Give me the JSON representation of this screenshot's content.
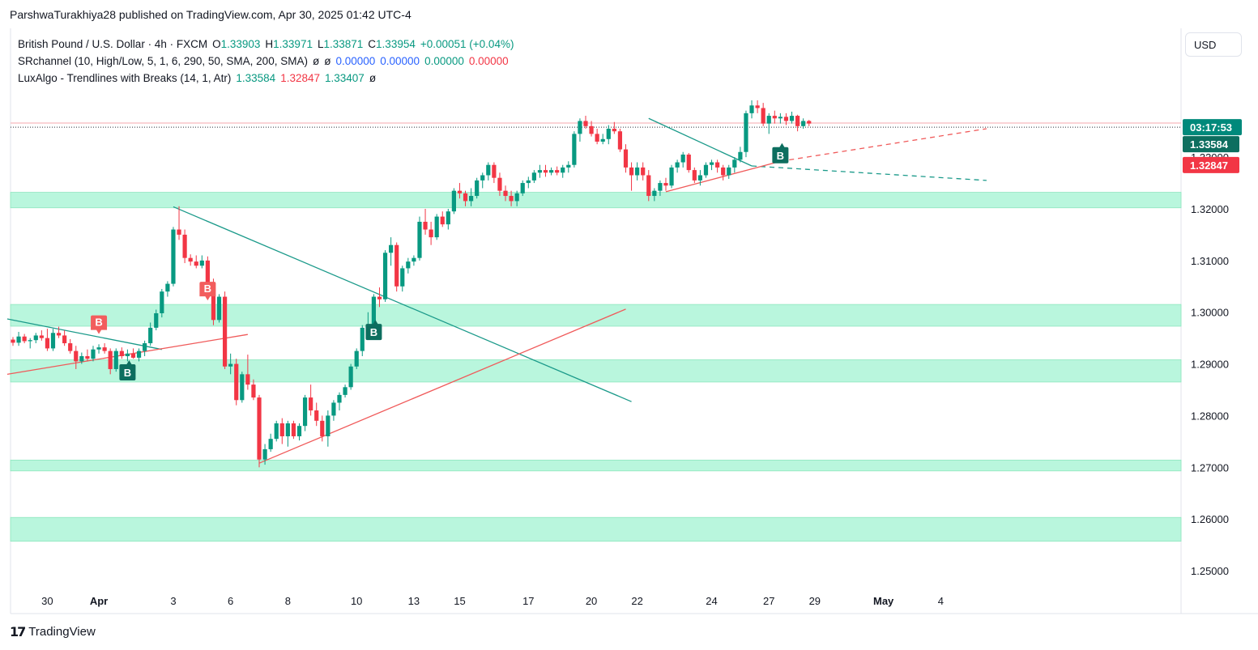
{
  "header": {
    "publisher": "ParshwaTurakhiya28 published on TradingView.com, Apr 30, 2025 01:42 UTC-4"
  },
  "legend": {
    "symbol": "British Pound / U.S. Dollar · 4h · FXCM",
    "o_label": "O",
    "o": "1.33903",
    "h_label": "H",
    "h": "1.33971",
    "l_label": "L",
    "l": "1.33871",
    "c_label": "C",
    "c": "1.33954",
    "change": "+0.00051 (+0.04%)",
    "ind1_name": "SRchannel (10, High/Low, 5, 1, 6, 290, 50, SMA, 200, SMA)",
    "ind1_phi1": "ø",
    "ind1_phi2": "ø",
    "ind1_v1": "0.00000",
    "ind1_v2": "0.00000",
    "ind1_v3": "0.00000",
    "ind1_v4": "0.00000",
    "ind2_name": "LuxAlgo - Trendlines with Breaks (14, 1, Atr)",
    "ind2_v1": "1.33584",
    "ind2_v2": "1.32847",
    "ind2_v3": "1.33407",
    "ind2_phi": "ø"
  },
  "currency_button": "USD",
  "price_tags": {
    "countdown": "03:17:53",
    "last_price": "1.33584",
    "red_price": "1.32847",
    "hidden_tick": "1.33000"
  },
  "footer": {
    "logo_text": "TradingView"
  },
  "colors": {
    "up": "#089981",
    "down": "#f23645",
    "zone": "#b9f6dd",
    "zone_edge": "#8ee6be",
    "tag_green": "#00897b",
    "tag_dark": "#0d6e5f",
    "tag_red": "#f23645",
    "trend_teal": "#1b9a8a",
    "trend_red": "#f05a5a"
  },
  "chart_data": {
    "type": "candlestick",
    "symbol": "GBPUSD",
    "timeframe": "4h",
    "y_ticks": [
      "1.32000",
      "1.31000",
      "1.30000",
      "1.29000",
      "1.28000",
      "1.27000",
      "1.26000",
      "1.25000"
    ],
    "ylim": [
      1.2455,
      1.3555
    ],
    "x_ticks": [
      {
        "label": "30",
        "bar": 6
      },
      {
        "label": "Apr",
        "bar": 15
      },
      {
        "label": "3",
        "bar": 28
      },
      {
        "label": "6",
        "bar": 38
      },
      {
        "label": "8",
        "bar": 48
      },
      {
        "label": "10",
        "bar": 60
      },
      {
        "label": "13",
        "bar": 70
      },
      {
        "label": "15",
        "bar": 78
      },
      {
        "label": "17",
        "bar": 90
      },
      {
        "label": "20",
        "bar": 101
      },
      {
        "label": "22",
        "bar": 109
      },
      {
        "label": "24",
        "bar": 122
      },
      {
        "label": "27",
        "bar": 132
      },
      {
        "label": "29",
        "bar": 140
      },
      {
        "label": "May",
        "bar": 152
      },
      {
        "label": "4",
        "bar": 162
      }
    ],
    "bold_x_ticks": [
      "Apr",
      "May"
    ],
    "sr_zones": [
      [
        1.3202,
        1.3232
      ],
      [
        1.2973,
        1.3015
      ],
      [
        1.2865,
        1.2908
      ],
      [
        1.2693,
        1.2714
      ],
      [
        1.2557,
        1.2603
      ]
    ],
    "resistance_line": 1.3366,
    "last_price_line": 1.3358,
    "candles": [
      [
        1.2947,
        1.2952,
        1.2935,
        1.2941
      ],
      [
        1.2941,
        1.2962,
        1.2935,
        1.2953
      ],
      [
        1.2953,
        1.2958,
        1.294,
        1.2944
      ],
      [
        1.2944,
        1.295,
        1.293,
        1.2946
      ],
      [
        1.2946,
        1.296,
        1.294,
        1.2955
      ],
      [
        1.2955,
        1.2965,
        1.2945,
        1.295
      ],
      [
        1.295,
        1.2968,
        1.2925,
        1.293
      ],
      [
        1.293,
        1.2968,
        1.2925,
        1.296
      ],
      [
        1.296,
        1.2972,
        1.295,
        1.2955
      ],
      [
        1.2955,
        1.2965,
        1.2935,
        1.294
      ],
      [
        1.294,
        1.2948,
        1.292,
        1.2925
      ],
      [
        1.2925,
        1.2935,
        1.289,
        1.2905
      ],
      [
        1.2905,
        1.2922,
        1.29,
        1.2915
      ],
      [
        1.2915,
        1.2928,
        1.2905,
        1.291
      ],
      [
        1.291,
        1.2935,
        1.2905,
        1.2928
      ],
      [
        1.2928,
        1.2938,
        1.292,
        1.2932
      ],
      [
        1.2932,
        1.294,
        1.292,
        1.2925
      ],
      [
        1.2925,
        1.293,
        1.288,
        1.289
      ],
      [
        1.289,
        1.293,
        1.2885,
        1.2925
      ],
      [
        1.2925,
        1.2932,
        1.291,
        1.2915
      ],
      [
        1.2915,
        1.2928,
        1.2905,
        1.292
      ],
      [
        1.292,
        1.293,
        1.291,
        1.2912
      ],
      [
        1.2912,
        1.293,
        1.2905,
        1.2925
      ],
      [
        1.2925,
        1.2945,
        1.2915,
        1.294
      ],
      [
        1.294,
        1.298,
        1.2935,
        1.297
      ],
      [
        1.297,
        1.3005,
        1.2965,
        1.2998
      ],
      [
        1.2998,
        1.3045,
        1.299,
        1.304
      ],
      [
        1.304,
        1.306,
        1.303,
        1.3055
      ],
      [
        1.3055,
        1.3165,
        1.305,
        1.316
      ],
      [
        1.316,
        1.3205,
        1.314,
        1.315
      ],
      [
        1.315,
        1.316,
        1.3095,
        1.3105
      ],
      [
        1.3105,
        1.3112,
        1.309,
        1.3098
      ],
      [
        1.3098,
        1.311,
        1.3085,
        1.309
      ],
      [
        1.309,
        1.311,
        1.3085,
        1.31
      ],
      [
        1.31,
        1.3108,
        1.305,
        1.3055
      ],
      [
        1.3055,
        1.3065,
        1.2975,
        1.2985
      ],
      [
        1.2985,
        1.3035,
        1.298,
        1.303
      ],
      [
        1.303,
        1.304,
        1.289,
        1.2895
      ],
      [
        1.2895,
        1.292,
        1.288,
        1.29
      ],
      [
        1.29,
        1.291,
        1.282,
        1.283
      ],
      [
        1.283,
        1.2885,
        1.2825,
        1.288
      ],
      [
        1.288,
        1.2918,
        1.285,
        1.286
      ],
      [
        1.286,
        1.287,
        1.283,
        1.2835
      ],
      [
        1.2835,
        1.284,
        1.27,
        1.2715
      ],
      [
        1.2715,
        1.2745,
        1.2705,
        1.2735
      ],
      [
        1.2735,
        1.2765,
        1.273,
        1.2755
      ],
      [
        1.2755,
        1.279,
        1.275,
        1.2785
      ],
      [
        1.2785,
        1.2795,
        1.2745,
        1.276
      ],
      [
        1.276,
        1.279,
        1.274,
        1.2785
      ],
      [
        1.2785,
        1.279,
        1.2755,
        1.276
      ],
      [
        1.276,
        1.2785,
        1.2752,
        1.278
      ],
      [
        1.278,
        1.284,
        1.277,
        1.2835
      ],
      [
        1.2835,
        1.286,
        1.28,
        1.281
      ],
      [
        1.281,
        1.2825,
        1.278,
        1.279
      ],
      [
        1.279,
        1.28,
        1.275,
        1.276
      ],
      [
        1.276,
        1.281,
        1.274,
        1.28
      ],
      [
        1.28,
        1.283,
        1.279,
        1.2825
      ],
      [
        1.2825,
        1.2845,
        1.281,
        1.284
      ],
      [
        1.284,
        1.286,
        1.2835,
        1.2855
      ],
      [
        1.2855,
        1.29,
        1.285,
        1.2895
      ],
      [
        1.2895,
        1.293,
        1.289,
        1.2925
      ],
      [
        1.2925,
        1.2975,
        1.2915,
        1.297
      ],
      [
        1.297,
        1.3,
        1.296,
        1.2975
      ],
      [
        1.2975,
        1.3035,
        1.297,
        1.303
      ],
      [
        1.303,
        1.3048,
        1.301,
        1.3025
      ],
      [
        1.3025,
        1.312,
        1.302,
        1.3115
      ],
      [
        1.3115,
        1.3145,
        1.309,
        1.313
      ],
      [
        1.313,
        1.3135,
        1.304,
        1.305
      ],
      [
        1.305,
        1.309,
        1.304,
        1.3085
      ],
      [
        1.3085,
        1.3105,
        1.3075,
        1.3098
      ],
      [
        1.3098,
        1.311,
        1.309,
        1.3105
      ],
      [
        1.3105,
        1.3185,
        1.31,
        1.3175
      ],
      [
        1.3175,
        1.32,
        1.315,
        1.316
      ],
      [
        1.316,
        1.3175,
        1.313,
        1.3145
      ],
      [
        1.3145,
        1.319,
        1.314,
        1.3185
      ],
      [
        1.3185,
        1.3195,
        1.3165,
        1.317
      ],
      [
        1.317,
        1.32,
        1.316,
        1.3195
      ],
      [
        1.3195,
        1.324,
        1.319,
        1.3235
      ],
      [
        1.3235,
        1.325,
        1.322,
        1.323
      ],
      [
        1.323,
        1.3235,
        1.3205,
        1.3215
      ],
      [
        1.3215,
        1.324,
        1.3205,
        1.3225
      ],
      [
        1.3225,
        1.326,
        1.322,
        1.3255
      ],
      [
        1.3255,
        1.327,
        1.324,
        1.3265
      ],
      [
        1.3265,
        1.329,
        1.3255,
        1.3285
      ],
      [
        1.3285,
        1.329,
        1.325,
        1.326
      ],
      [
        1.326,
        1.327,
        1.3225,
        1.3235
      ],
      [
        1.3235,
        1.3245,
        1.3215,
        1.3225
      ],
      [
        1.3225,
        1.3235,
        1.3205,
        1.3215
      ],
      [
        1.3215,
        1.3235,
        1.3205,
        1.323
      ],
      [
        1.323,
        1.3255,
        1.3225,
        1.325
      ],
      [
        1.325,
        1.3262,
        1.324,
        1.3255
      ],
      [
        1.3255,
        1.3275,
        1.325,
        1.327
      ],
      [
        1.327,
        1.3285,
        1.326,
        1.3275
      ],
      [
        1.3275,
        1.3285,
        1.3262,
        1.327
      ],
      [
        1.327,
        1.328,
        1.3265,
        1.3275
      ],
      [
        1.3275,
        1.3282,
        1.3265,
        1.327
      ],
      [
        1.327,
        1.3285,
        1.326,
        1.328
      ],
      [
        1.328,
        1.3292,
        1.327,
        1.3285
      ],
      [
        1.3285,
        1.335,
        1.328,
        1.3345
      ],
      [
        1.3345,
        1.3375,
        1.333,
        1.337
      ],
      [
        1.337,
        1.338,
        1.3355,
        1.336
      ],
      [
        1.336,
        1.337,
        1.334,
        1.3345
      ],
      [
        1.3345,
        1.3355,
        1.3325,
        1.333
      ],
      [
        1.333,
        1.3345,
        1.3325,
        1.3335
      ],
      [
        1.3335,
        1.3362,
        1.3325,
        1.3355
      ],
      [
        1.3355,
        1.3368,
        1.3345,
        1.335
      ],
      [
        1.335,
        1.3355,
        1.331,
        1.3315
      ],
      [
        1.3315,
        1.3325,
        1.327,
        1.328
      ],
      [
        1.328,
        1.329,
        1.3235,
        1.3265
      ],
      [
        1.3265,
        1.329,
        1.3255,
        1.328
      ],
      [
        1.328,
        1.329,
        1.3255,
        1.3265
      ],
      [
        1.3265,
        1.3275,
        1.3215,
        1.3225
      ],
      [
        1.3225,
        1.324,
        1.3215,
        1.3235
      ],
      [
        1.3235,
        1.3255,
        1.3225,
        1.325
      ],
      [
        1.325,
        1.326,
        1.3235,
        1.3245
      ],
      [
        1.3245,
        1.3285,
        1.324,
        1.328
      ],
      [
        1.328,
        1.3295,
        1.327,
        1.329
      ],
      [
        1.329,
        1.331,
        1.328,
        1.3305
      ],
      [
        1.3305,
        1.3308,
        1.327,
        1.3275
      ],
      [
        1.3275,
        1.328,
        1.325,
        1.3255
      ],
      [
        1.3255,
        1.3275,
        1.3245,
        1.3265
      ],
      [
        1.3265,
        1.329,
        1.326,
        1.3285
      ],
      [
        1.3285,
        1.3295,
        1.3275,
        1.329
      ],
      [
        1.329,
        1.3295,
        1.327,
        1.328
      ],
      [
        1.328,
        1.3285,
        1.3255,
        1.3265
      ],
      [
        1.3265,
        1.3285,
        1.3258,
        1.328
      ],
      [
        1.328,
        1.33,
        1.327,
        1.3295
      ],
      [
        1.3295,
        1.332,
        1.329,
        1.331
      ],
      [
        1.331,
        1.339,
        1.33,
        1.3385
      ],
      [
        1.3385,
        1.341,
        1.3375,
        1.34
      ],
      [
        1.34,
        1.341,
        1.3385,
        1.3395
      ],
      [
        1.3395,
        1.3405,
        1.336,
        1.3365
      ],
      [
        1.3365,
        1.3385,
        1.3345,
        1.338
      ],
      [
        1.338,
        1.339,
        1.3365,
        1.3375
      ],
      [
        1.3375,
        1.3385,
        1.3365,
        1.3378
      ],
      [
        1.3378,
        1.3385,
        1.3362,
        1.337
      ],
      [
        1.337,
        1.3388,
        1.3365,
        1.338
      ],
      [
        1.338,
        1.3382,
        1.335,
        1.336
      ],
      [
        1.336,
        1.3375,
        1.3355,
        1.337
      ],
      [
        1.337,
        1.3372,
        1.336,
        1.3365
      ]
    ],
    "trendlines": [
      {
        "color": "teal",
        "from": [
          -1,
          1.2987
        ],
        "to": [
          26,
          1.2928
        ]
      },
      {
        "color": "red",
        "from": [
          -1,
          1.288
        ],
        "to": [
          41,
          1.2957
        ]
      },
      {
        "color": "teal",
        "from": [
          28,
          1.3204
        ],
        "to": [
          108,
          1.2827
        ]
      },
      {
        "color": "red",
        "from": [
          43,
          1.2708
        ],
        "to": [
          107,
          1.3006
        ]
      },
      {
        "color": "teal",
        "from": [
          111,
          1.3375
        ],
        "to": [
          129,
          1.3283
        ]
      },
      {
        "color": "teal",
        "dashed": true,
        "from": [
          129,
          1.3283
        ],
        "to": [
          170,
          1.3255
        ]
      },
      {
        "color": "red",
        "from": [
          114,
          1.3233
        ],
        "to": [
          134,
          1.3292
        ]
      },
      {
        "color": "red",
        "dashed": true,
        "from": [
          134,
          1.3292
        ],
        "to": [
          170,
          1.3355
        ]
      }
    ],
    "break_labels": [
      {
        "text": "B",
        "bar": 15,
        "price": 1.2975,
        "color": "red"
      },
      {
        "text": "B",
        "bar": 20,
        "price": 1.289,
        "color": "green"
      },
      {
        "text": "B",
        "bar": 34,
        "price": 1.304,
        "color": "red"
      },
      {
        "text": "B",
        "bar": 63,
        "price": 1.2968,
        "color": "green"
      },
      {
        "text": "B",
        "bar": 134,
        "price": 1.331,
        "color": "green"
      }
    ]
  }
}
